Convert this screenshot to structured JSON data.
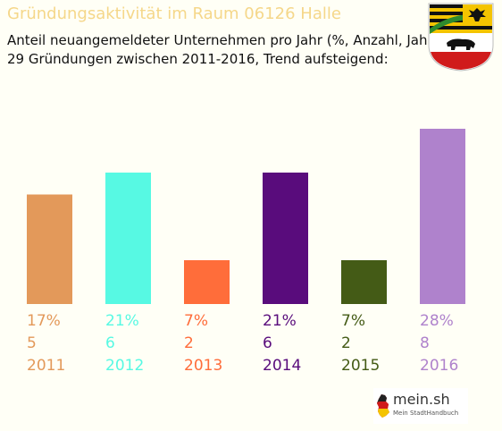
{
  "header": {
    "title": "Gründungsaktivität im Raum 06126 Halle",
    "subtitle_line1": "Anteil neuangemeldeter Unternehmen pro Jahr (%, Anzahl, Jahr)",
    "subtitle_line2": "29 Gründungen zwischen 2011-2016, Trend aufsteigend:"
  },
  "crest": {
    "icon": "saxony-anhalt-coat-of-arms-icon"
  },
  "logo": {
    "name": "mein.sh",
    "tagline": "Mein StadtHandbuch",
    "icon": "germany-map-icon"
  },
  "chart_data": {
    "type": "bar",
    "categories": [
      "2011",
      "2012",
      "2013",
      "2014",
      "2015",
      "2016"
    ],
    "percent_labels": [
      "17%",
      "21%",
      "7%",
      "21%",
      "7%",
      "28%"
    ],
    "count_labels": [
      "5",
      "6",
      "2",
      "6",
      "2",
      "8"
    ],
    "values": [
      5,
      6,
      2,
      6,
      2,
      8
    ],
    "colors": [
      "#e3995a",
      "#57f9e3",
      "#ff6d3a",
      "#590c7c",
      "#445b16",
      "#af82cc"
    ],
    "ylim": [
      0,
      8
    ],
    "grid": false,
    "legend": "none"
  }
}
